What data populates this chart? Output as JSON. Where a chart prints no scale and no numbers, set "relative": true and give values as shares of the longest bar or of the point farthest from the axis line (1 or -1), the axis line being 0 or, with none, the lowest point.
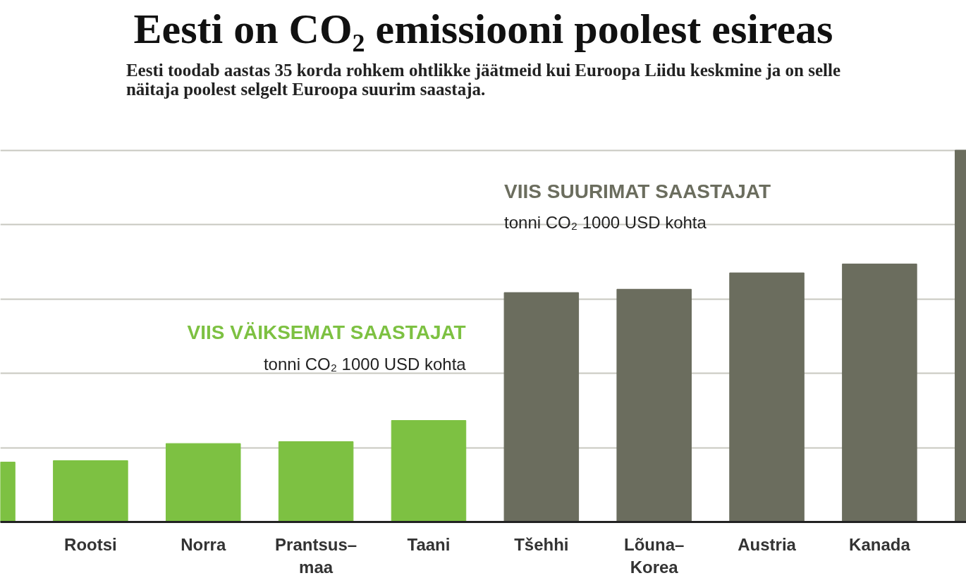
{
  "chart_data": {
    "type": "bar",
    "title": "Eesti on CO₂ emissiooni poolest esireas",
    "subtitle": "Eesti toodab aastas 35 korda rohkem ohtlikke jäätmeid kui Euroopa Liidu keskmine ja on selle\nnäitaja poolest selgelt Euroopa suurim saastaja.",
    "categories": [
      null,
      "Rootsi",
      "Norra",
      "Prantsus–\nmaa",
      "Taani",
      "Tšehhi",
      "Lõuna–\nKorea",
      "Austria",
      "Kanada",
      null
    ],
    "values": [
      0.161,
      0.165,
      0.211,
      0.216,
      0.273,
      0.617,
      0.626,
      0.67,
      0.694,
      1.0
    ],
    "colors": [
      "#7dc142",
      "#7dc142",
      "#7dc142",
      "#7dc142",
      "#7dc142",
      "#6b6d5e",
      "#6b6d5e",
      "#6b6d5e",
      "#6b6d5e",
      "#6b6d5e"
    ],
    "relative": true,
    "grid": "y",
    "annotations": [
      "VIIS VÄIKSEMAT SAASTAJAT",
      "tonni CO₂ 1000 USD kohta",
      "VIIS SUURIMAT SAASTAJAT",
      "tonni CO₂ 1000 USD kohta"
    ]
  }
}
